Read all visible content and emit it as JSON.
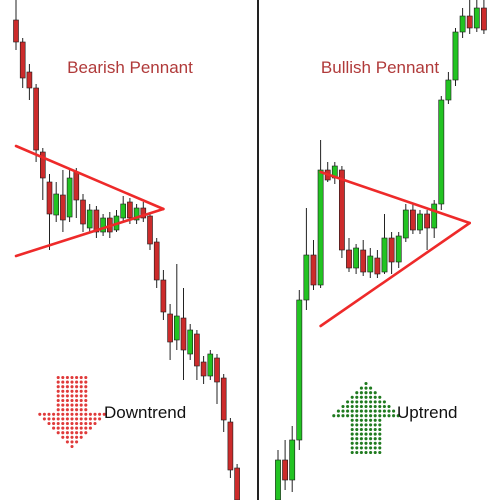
{
  "colors": {
    "bull": "#22c322",
    "bear": "#cc2b2b",
    "wick": "#222222",
    "pennant_line": "#ee2a2a",
    "divider": "#222222",
    "down_arrow": "#e03a3a",
    "up_arrow": "#1f7a1f"
  },
  "chart_data": [
    {
      "type": "candlestick",
      "title": "Bearish Pennant",
      "trend_label": "Downtrend",
      "trend_arrow": "down-arrow-icon",
      "ylim": [
        0,
        500
      ],
      "candles": [
        {
          "o": 480,
          "c": 458,
          "h": 500,
          "l": 450
        },
        {
          "o": 458,
          "c": 422,
          "h": 462,
          "l": 412
        },
        {
          "o": 428,
          "c": 412,
          "h": 436,
          "l": 400
        },
        {
          "o": 412,
          "c": 350,
          "h": 416,
          "l": 338
        },
        {
          "o": 348,
          "c": 322,
          "h": 352,
          "l": 300
        },
        {
          "o": 318,
          "c": 286,
          "h": 326,
          "l": 250
        },
        {
          "o": 285,
          "c": 306,
          "h": 318,
          "l": 278
        },
        {
          "o": 305,
          "c": 280,
          "h": 330,
          "l": 268
        },
        {
          "o": 283,
          "c": 322,
          "h": 330,
          "l": 278
        },
        {
          "o": 328,
          "c": 300,
          "h": 332,
          "l": 282
        },
        {
          "o": 300,
          "c": 276,
          "h": 306,
          "l": 268
        },
        {
          "o": 272,
          "c": 290,
          "h": 296,
          "l": 268
        },
        {
          "o": 290,
          "c": 268,
          "h": 294,
          "l": 262
        },
        {
          "o": 268,
          "c": 282,
          "h": 286,
          "l": 264
        },
        {
          "o": 282,
          "c": 268,
          "h": 288,
          "l": 262
        },
        {
          "o": 270,
          "c": 284,
          "h": 290,
          "l": 268
        },
        {
          "o": 282,
          "c": 296,
          "h": 304,
          "l": 278
        },
        {
          "o": 298,
          "c": 282,
          "h": 302,
          "l": 276
        },
        {
          "o": 280,
          "c": 292,
          "h": 296,
          "l": 276
        },
        {
          "o": 292,
          "c": 282,
          "h": 298,
          "l": 278
        },
        {
          "o": 284,
          "c": 256,
          "h": 288,
          "l": 250
        },
        {
          "o": 258,
          "c": 220,
          "h": 262,
          "l": 212
        },
        {
          "o": 220,
          "c": 188,
          "h": 230,
          "l": 180
        },
        {
          "o": 186,
          "c": 158,
          "h": 196,
          "l": 140
        },
        {
          "o": 160,
          "c": 184,
          "h": 236,
          "l": 150
        },
        {
          "o": 182,
          "c": 150,
          "h": 212,
          "l": 120
        },
        {
          "o": 146,
          "c": 170,
          "h": 176,
          "l": 140
        },
        {
          "o": 166,
          "c": 134,
          "h": 170,
          "l": 120
        },
        {
          "o": 138,
          "c": 124,
          "h": 144,
          "l": 116
        },
        {
          "o": 124,
          "c": 146,
          "h": 150,
          "l": 120
        },
        {
          "o": 142,
          "c": 118,
          "h": 146,
          "l": 96
        },
        {
          "o": 122,
          "c": 80,
          "h": 126,
          "l": 68
        },
        {
          "o": 78,
          "c": 30,
          "h": 82,
          "l": 22
        },
        {
          "o": 32,
          "c": 0,
          "h": 36,
          "l": 0
        }
      ],
      "pennant": {
        "upper": [
          [
            0,
            354
          ],
          [
            22,
            291
          ]
        ],
        "lower": [
          [
            0,
            244
          ],
          [
            22,
            291
          ]
        ]
      }
    },
    {
      "type": "candlestick",
      "title": "Bullish Pennant",
      "trend_label": "Uptrend",
      "trend_arrow": "up-arrow-icon",
      "ylim": [
        0,
        500
      ],
      "candles": [
        {
          "o": 0,
          "c": 40,
          "h": 50,
          "l": 0
        },
        {
          "o": 40,
          "c": 20,
          "h": 60,
          "l": 10
        },
        {
          "o": 20,
          "c": 60,
          "h": 74,
          "l": 8
        },
        {
          "o": 60,
          "c": 200,
          "h": 210,
          "l": 50
        },
        {
          "o": 200,
          "c": 245,
          "h": 292,
          "l": 190
        },
        {
          "o": 245,
          "c": 215,
          "h": 260,
          "l": 210
        },
        {
          "o": 215,
          "c": 330,
          "h": 360,
          "l": 212
        },
        {
          "o": 330,
          "c": 320,
          "h": 338,
          "l": 318
        },
        {
          "o": 322,
          "c": 334,
          "h": 338,
          "l": 316
        },
        {
          "o": 330,
          "c": 250,
          "h": 334,
          "l": 242
        },
        {
          "o": 250,
          "c": 232,
          "h": 262,
          "l": 228
        },
        {
          "o": 232,
          "c": 252,
          "h": 256,
          "l": 226
        },
        {
          "o": 250,
          "c": 228,
          "h": 260,
          "l": 224
        },
        {
          "o": 228,
          "c": 244,
          "h": 252,
          "l": 222
        },
        {
          "o": 242,
          "c": 226,
          "h": 250,
          "l": 222
        },
        {
          "o": 228,
          "c": 262,
          "h": 286,
          "l": 226
        },
        {
          "o": 262,
          "c": 238,
          "h": 268,
          "l": 226
        },
        {
          "o": 238,
          "c": 264,
          "h": 268,
          "l": 232
        },
        {
          "o": 262,
          "c": 290,
          "h": 296,
          "l": 258
        },
        {
          "o": 290,
          "c": 270,
          "h": 296,
          "l": 266
        },
        {
          "o": 270,
          "c": 286,
          "h": 290,
          "l": 266
        },
        {
          "o": 286,
          "c": 272,
          "h": 290,
          "l": 250
        },
        {
          "o": 272,
          "c": 296,
          "h": 300,
          "l": 262
        },
        {
          "o": 296,
          "c": 400,
          "h": 404,
          "l": 290
        },
        {
          "o": 400,
          "c": 420,
          "h": 428,
          "l": 396
        },
        {
          "o": 420,
          "c": 468,
          "h": 472,
          "l": 414
        },
        {
          "o": 468,
          "c": 484,
          "h": 492,
          "l": 462
        },
        {
          "o": 484,
          "c": 472,
          "h": 500,
          "l": 466
        },
        {
          "o": 472,
          "c": 492,
          "h": 500,
          "l": 468
        },
        {
          "o": 492,
          "c": 470,
          "h": 500,
          "l": 466
        }
      ],
      "pennant": {
        "upper": [
          [
            6,
            328
          ],
          [
            27,
            277
          ]
        ],
        "lower": [
          [
            6,
            174
          ],
          [
            27,
            277
          ]
        ]
      }
    }
  ]
}
